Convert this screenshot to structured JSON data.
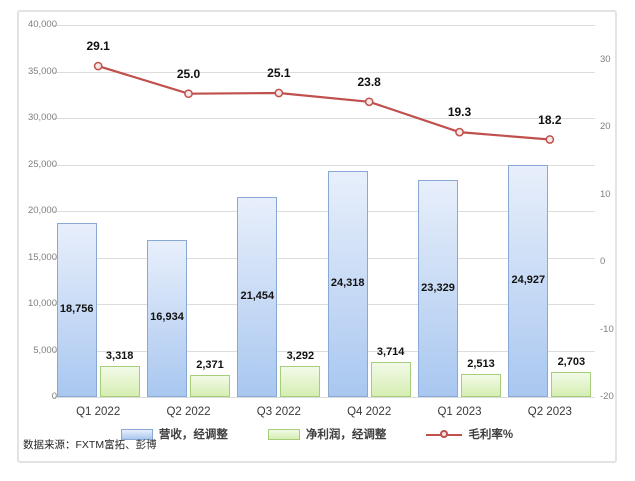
{
  "source_note": "数据来源：FXTM富拓、彭博",
  "legend": [
    {
      "label": "营收，经调整",
      "kind": "bar",
      "fill_top": "#e8effb",
      "fill_bottom": "#a9c7f0",
      "border": "#88a9d6"
    },
    {
      "label": "净利润，经调整",
      "kind": "bar",
      "fill_top": "#f2fae8",
      "fill_bottom": "#d6eeb2",
      "border": "#a6ce7a"
    },
    {
      "label": "毛利率%",
      "kind": "line",
      "color": "#c0504d"
    }
  ],
  "colors": {
    "gridline": "#dcdcdc",
    "axis_text": "#7f7f7f",
    "line": "#c0504d",
    "marker_fill": "#f6e8e7",
    "frame_border": "#e3e3e3"
  },
  "chart_data": {
    "type": "combo",
    "categories": [
      "Q1 2022",
      "Q2 2022",
      "Q3 2022",
      "Q4 2022",
      "Q1 2023",
      "Q2 2023"
    ],
    "series": [
      {
        "name": "营收，经调整",
        "type": "bar",
        "axis": "left",
        "values": [
          18756,
          16934,
          21454,
          24318,
          23329,
          24927
        ],
        "labels": [
          "18,756",
          "16,934",
          "21,454",
          "24,318",
          "23,329",
          "24,927"
        ],
        "fill_top": "#e8effb",
        "fill_bottom": "#a9c7f0",
        "border": "#88a9d6"
      },
      {
        "name": "净利润，经调整",
        "type": "bar",
        "axis": "left",
        "values": [
          3318,
          2371,
          3292,
          3714,
          2513,
          2703
        ],
        "labels": [
          "3,318",
          "2,371",
          "3,292",
          "3,714",
          "2,513",
          "2,703"
        ],
        "fill_top": "#f2fae8",
        "fill_bottom": "#d6eeb2",
        "border": "#a6ce7a"
      },
      {
        "name": "毛利率%",
        "type": "line",
        "axis": "right",
        "values": [
          29.1,
          25.0,
          25.1,
          23.8,
          19.3,
          18.2
        ],
        "labels": [
          "29.1",
          "25.0",
          "25.1",
          "23.8",
          "19.3",
          "18.2"
        ],
        "color": "#c0504d"
      }
    ],
    "left_axis": {
      "min": 0,
      "max": 40000,
      "step": 5000,
      "tick_labels": [
        "0",
        "5,000",
        "10,000",
        "15,000",
        "20,000",
        "25,000",
        "30,000",
        "35,000",
        "40,000"
      ]
    },
    "right_axis": {
      "min": -20,
      "max": 35,
      "step": 10,
      "tick_labels": [
        "-20",
        "-10",
        "0",
        "10",
        "20",
        "30"
      ]
    },
    "grid": true,
    "legend_position": "bottom",
    "title": ""
  }
}
